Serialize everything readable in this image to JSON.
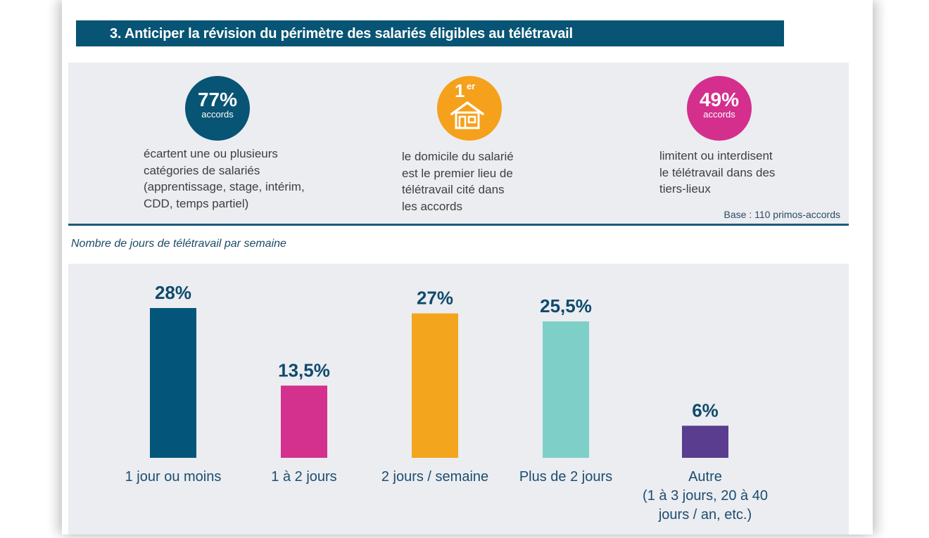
{
  "header": {
    "title": "3. Anticiper la révision du périmètre des salariés éligibles au télétravail"
  },
  "stats": [
    {
      "value": "77%",
      "unit": "accords",
      "color": "#085474",
      "lines": [
        "écartent une ou plusieurs",
        "catégories de salariés",
        "(apprentissage, stage, intérim,",
        "CDD, temps partiel)"
      ]
    },
    {
      "value": "1",
      "sup": "er",
      "icon": "house-icon",
      "color": "#f5a11c",
      "lines": [
        "le domicile du salarié",
        "est le premier lieu de",
        "télétravail cité dans",
        "les accords"
      ]
    },
    {
      "value": "49%",
      "unit": "accords",
      "color": "#d42f8c",
      "lines": [
        "limitent ou interdisent",
        "le télétravail dans des",
        "tiers-lieux"
      ]
    }
  ],
  "base_note": "Base : 110 primos-accords",
  "chart_title": "Nombre de jours de télétravail par semaine",
  "chart_data": {
    "type": "bar",
    "categories": [
      [
        "1 jour ou moins"
      ],
      [
        "1 à 2 jours"
      ],
      [
        "2 jours / semaine"
      ],
      [
        "Plus de 2 jours"
      ],
      [
        "Autre",
        "(1 à 3 jours, 20 à 40",
        "jours / an, etc.)"
      ]
    ],
    "values": [
      28,
      13.5,
      27,
      25.5,
      6
    ],
    "value_labels": [
      "28%",
      "13,5%",
      "27%",
      "25,5%",
      "6%"
    ],
    "colors": [
      "#03557a",
      "#d3318d",
      "#f4a51e",
      "#7fcfc9",
      "#5a3d8f"
    ],
    "ylim": [
      0,
      28
    ]
  }
}
